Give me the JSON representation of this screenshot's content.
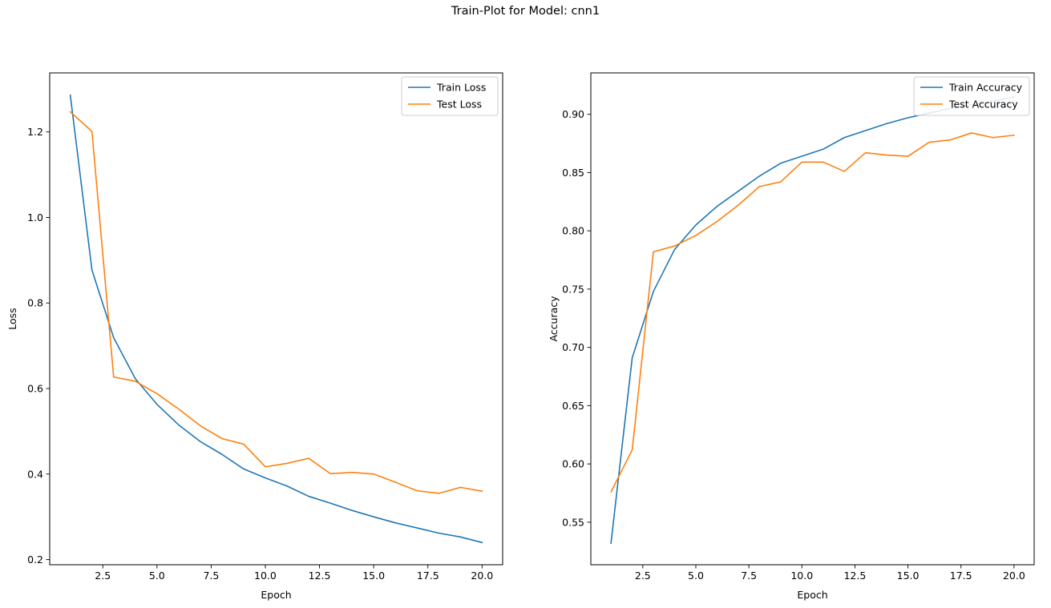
{
  "figure": {
    "suptitle": "Train-Plot for Model: cnn1",
    "colors": {
      "train": "#1f77b4",
      "test": "#ff7f0e",
      "axis": "#000000"
    }
  },
  "chart_data": [
    {
      "type": "line",
      "title": "",
      "xlabel": "Epoch",
      "ylabel": "Loss",
      "xlim": [
        0.05,
        20.95
      ],
      "ylim": [
        0.188,
        1.338
      ],
      "xticks": [
        2.5,
        5.0,
        7.5,
        10.0,
        12.5,
        15.0,
        17.5,
        20.0
      ],
      "xtick_labels": [
        "2.5",
        "5.0",
        "7.5",
        "10.0",
        "12.5",
        "15.0",
        "17.5",
        "20.0"
      ],
      "yticks": [
        0.2,
        0.4,
        0.6,
        0.8,
        1.0,
        1.2
      ],
      "ytick_labels": [
        "0.2",
        "0.4",
        "0.6",
        "0.8",
        "1.0",
        "1.2"
      ],
      "grid": false,
      "legend": "upper right",
      "x": [
        1,
        2,
        3,
        4,
        5,
        6,
        7,
        8,
        9,
        10,
        11,
        12,
        13,
        14,
        15,
        16,
        17,
        18,
        19,
        20
      ],
      "series": [
        {
          "name": "Train Loss",
          "color": "#1f77b4",
          "values": [
            1.286,
            0.877,
            0.719,
            0.623,
            0.563,
            0.515,
            0.476,
            0.446,
            0.412,
            0.391,
            0.372,
            0.348,
            0.332,
            0.315,
            0.3,
            0.286,
            0.274,
            0.262,
            0.253,
            0.24
          ]
        },
        {
          "name": "Test Loss",
          "color": "#ff7f0e",
          "values": [
            1.247,
            1.201,
            0.627,
            0.617,
            0.588,
            0.552,
            0.513,
            0.483,
            0.47,
            0.417,
            0.425,
            0.437,
            0.401,
            0.404,
            0.4,
            0.381,
            0.361,
            0.355,
            0.369,
            0.36
          ]
        }
      ]
    },
    {
      "type": "line",
      "title": "",
      "xlabel": "Epoch",
      "ylabel": "Accuracy",
      "xlim": [
        0.05,
        20.95
      ],
      "ylim": [
        0.5135,
        0.9355
      ],
      "xticks": [
        2.5,
        5.0,
        7.5,
        10.0,
        12.5,
        15.0,
        17.5,
        20.0
      ],
      "xtick_labels": [
        "2.5",
        "5.0",
        "7.5",
        "10.0",
        "12.5",
        "15.0",
        "17.5",
        "20.0"
      ],
      "yticks": [
        0.55,
        0.6,
        0.65,
        0.7,
        0.75,
        0.8,
        0.85,
        0.9
      ],
      "ytick_labels": [
        "0.55",
        "0.60",
        "0.65",
        "0.70",
        "0.75",
        "0.80",
        "0.85",
        "0.90"
      ],
      "grid": false,
      "legend": "upper right",
      "x": [
        1,
        2,
        3,
        4,
        5,
        6,
        7,
        8,
        9,
        10,
        11,
        12,
        13,
        14,
        15,
        16,
        17,
        18,
        19,
        20
      ],
      "series": [
        {
          "name": "Train Accuracy",
          "color": "#1f77b4",
          "values": [
            0.532,
            0.691,
            0.748,
            0.784,
            0.805,
            0.821,
            0.834,
            0.847,
            0.858,
            0.864,
            0.87,
            0.88,
            0.886,
            0.892,
            0.897,
            0.901,
            0.905,
            0.908,
            0.911,
            0.915
          ]
        },
        {
          "name": "Test Accuracy",
          "color": "#ff7f0e",
          "values": [
            0.576,
            0.612,
            0.782,
            0.787,
            0.796,
            0.808,
            0.822,
            0.838,
            0.842,
            0.859,
            0.859,
            0.851,
            0.867,
            0.865,
            0.864,
            0.876,
            0.878,
            0.884,
            0.88,
            0.882
          ]
        }
      ]
    }
  ]
}
